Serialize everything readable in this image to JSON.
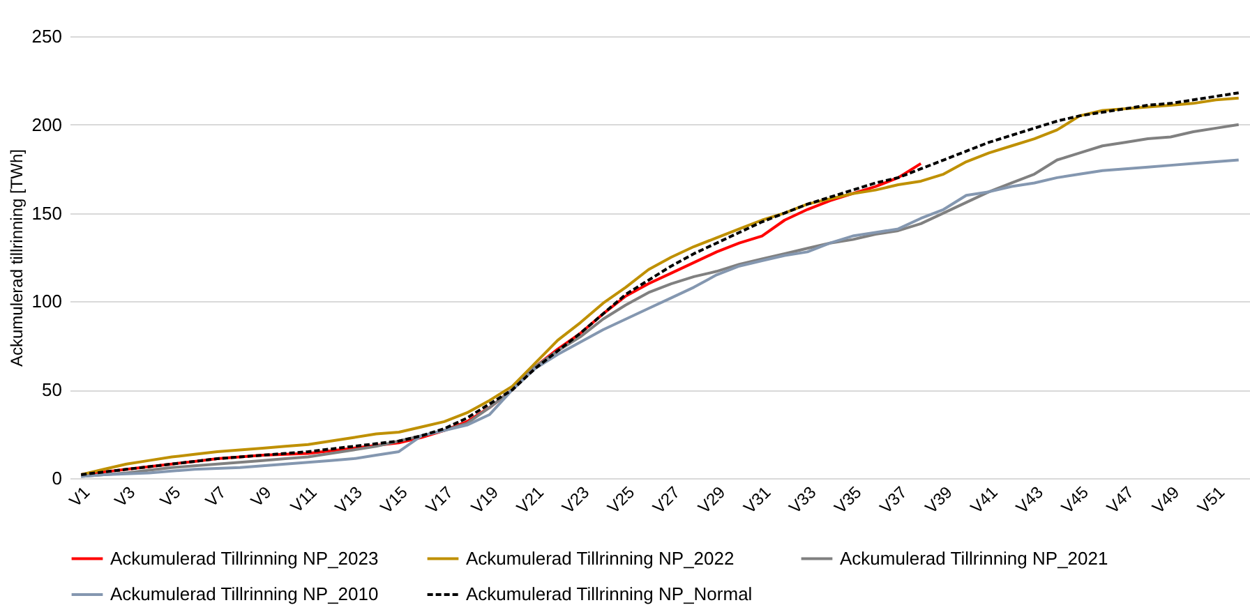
{
  "chart_data": {
    "type": "line",
    "ylabel": "Ackumulerad tillrinning [TWh]",
    "categories": [
      "V1",
      null,
      "V3",
      null,
      "V5",
      null,
      "V7",
      null,
      "V9",
      null,
      "V11",
      null,
      "V13",
      null,
      "V15",
      null,
      "V17",
      null,
      "V19",
      null,
      "V21",
      null,
      "V23",
      null,
      "V25",
      null,
      "V27",
      null,
      "V29",
      null,
      "V31",
      null,
      "V33",
      null,
      "V35",
      null,
      "V37",
      null,
      "V39",
      null,
      "V41",
      null,
      "V43",
      null,
      "V45",
      null,
      "V47",
      null,
      "V49",
      null,
      "V51",
      null
    ],
    "series": [
      {
        "name": "Ackumulerad Tillrinning NP_2023",
        "color": "#ff0000",
        "values": [
          2,
          3.5,
          5,
          6.5,
          8,
          9.5,
          11,
          12,
          13,
          13.5,
          14,
          15.5,
          17,
          18.5,
          20,
          23,
          27,
          32,
          40,
          50,
          63,
          73,
          82,
          93,
          103,
          110,
          116,
          122,
          128,
          133,
          137,
          146,
          152,
          157,
          161,
          165,
          170,
          178,
          null,
          null,
          null,
          null,
          null,
          null,
          null,
          null,
          null,
          null,
          null,
          null,
          null,
          null
        ]
      },
      {
        "name": "Ackumulerad Tillrinning NP_2022",
        "color": "#bf9000",
        "values": [
          2,
          5,
          8,
          10,
          12,
          13.5,
          15,
          16,
          17,
          18,
          19,
          21,
          23,
          25,
          26,
          29,
          32,
          37,
          44,
          52,
          65,
          78,
          88,
          99,
          108,
          118,
          125,
          131,
          136,
          141,
          146,
          150,
          155,
          158,
          161,
          163,
          166,
          168,
          172,
          179,
          184,
          188,
          192,
          197,
          205,
          208,
          209,
          210,
          211,
          212,
          214,
          215
        ]
      },
      {
        "name": "Ackumulerad Tillrinning NP_2021",
        "color": "#808080",
        "values": [
          1,
          2,
          3,
          4.5,
          6,
          7,
          8,
          9,
          10,
          11,
          12,
          14,
          16,
          18,
          21,
          24,
          27,
          31,
          40,
          50,
          63,
          72,
          80,
          90,
          98,
          105,
          110,
          114,
          117,
          121,
          124,
          127,
          130,
          133,
          135,
          138,
          140,
          144,
          150,
          156,
          162,
          167,
          172,
          180,
          184,
          188,
          190,
          192,
          193,
          196,
          198,
          200
        ]
      },
      {
        "name": "Ackumulerad Tillrinning NP_2010",
        "color": "#8497b0",
        "values": [
          1,
          2,
          2.5,
          3,
          4,
          5,
          5.5,
          6,
          7,
          8,
          9,
          10,
          11,
          13,
          15,
          24,
          27,
          30,
          36,
          50,
          62,
          70,
          77,
          84,
          90,
          96,
          102,
          108,
          115,
          120,
          123,
          126,
          128,
          133,
          137,
          139,
          141,
          147,
          152,
          160,
          162,
          165,
          167,
          170,
          172,
          174,
          175,
          176,
          177,
          178,
          179,
          180
        ]
      },
      {
        "name": "Ackumulerad Tillrinning NP_Normal",
        "color": "#000000",
        "line_style": "dashed",
        "values": [
          2,
          3.5,
          5,
          6.5,
          8,
          9.5,
          11,
          12,
          13,
          14,
          15,
          16.5,
          18,
          19.5,
          21,
          24,
          28,
          34,
          42,
          50,
          62,
          72,
          82,
          93,
          104,
          112,
          120,
          127,
          133,
          139,
          145,
          150,
          155,
          159,
          163,
          167,
          170,
          175,
          180,
          185,
          190,
          194,
          198,
          202,
          205,
          207,
          209,
          211,
          212,
          214,
          216,
          218
        ]
      }
    ],
    "ylim": [
      0,
      250
    ],
    "yticks": [
      0,
      50,
      100,
      150,
      200,
      250
    ],
    "grid": "y",
    "legend": "bottom"
  }
}
